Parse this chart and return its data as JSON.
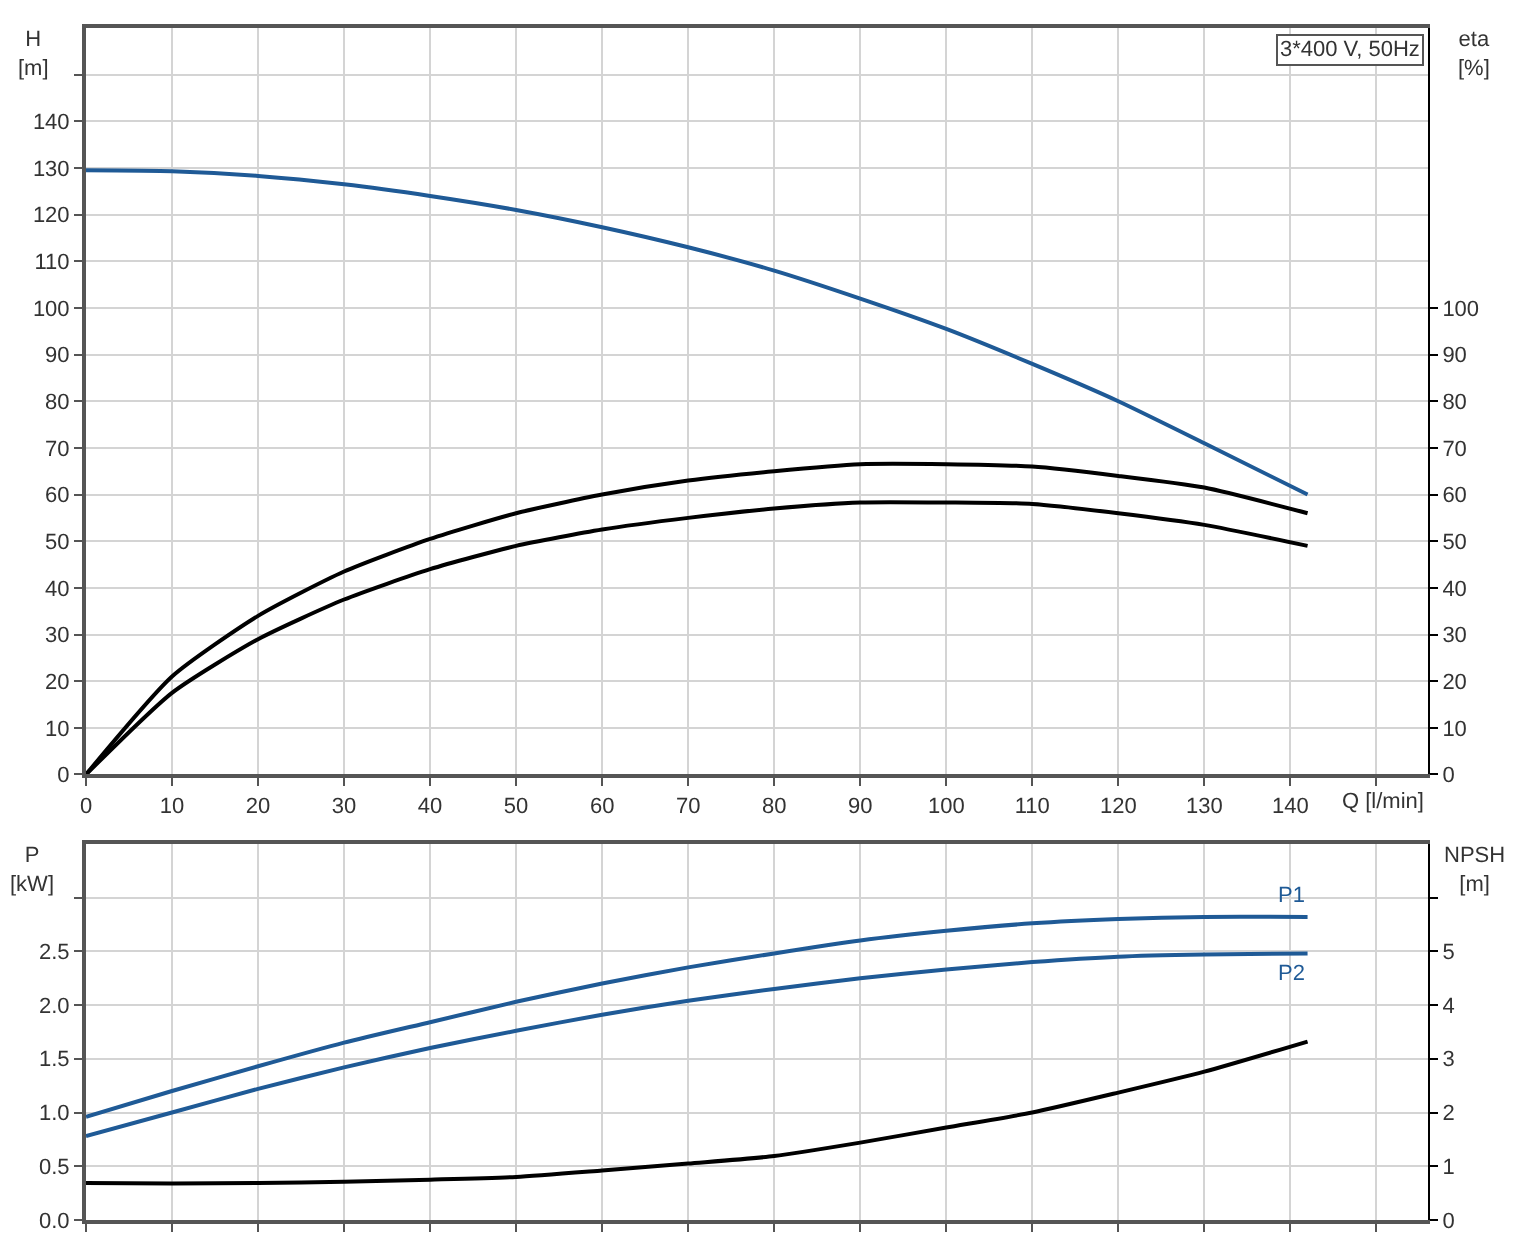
{
  "chart_data": [
    {
      "type": "line",
      "xlabel": "Q [l/min]",
      "ylabel": "H\n[m]",
      "y2label": "eta\n[%]",
      "annotations": [
        "3*400 V, 50Hz"
      ],
      "x": [
        0,
        10,
        20,
        30,
        40,
        50,
        60,
        70,
        80,
        90,
        100,
        110,
        120,
        130,
        142
      ],
      "series": [
        {
          "color": "#1f5a96",
          "values": [
            129.5,
            129.3,
            128.3,
            126.5,
            124,
            121,
            117.3,
            113,
            108,
            102,
            95.5,
            88,
            80,
            71,
            60
          ]
        },
        {
          "color": "#000000",
          "axis": "y2",
          "values": [
            0,
            21,
            34,
            43.5,
            50.5,
            56,
            60,
            63,
            65,
            66.5,
            66.5,
            66,
            64,
            61.5,
            56
          ]
        },
        {
          "color": "#000000",
          "axis": "y2",
          "values": [
            0,
            17.5,
            29,
            37.5,
            44,
            49,
            52.5,
            55,
            57,
            58.3,
            58.3,
            58,
            56,
            53.5,
            49
          ]
        }
      ],
      "xlim": [
        0,
        156
      ],
      "xticks": [
        0,
        10,
        20,
        30,
        40,
        50,
        60,
        70,
        80,
        90,
        100,
        110,
        120,
        130,
        140,
        {
          "value": 150,
          "label": null
        }
      ],
      "ylim": [
        0,
        160
      ],
      "yticks": [
        0,
        10,
        20,
        30,
        40,
        50,
        60,
        70,
        80,
        90,
        100,
        110,
        120,
        130,
        140,
        {
          "value": 150,
          "label": null
        }
      ],
      "y2lim": [
        0,
        160
      ],
      "y2ticks": [
        0,
        10,
        20,
        30,
        40,
        50,
        60,
        70,
        80,
        90,
        100
      ],
      "grid": true,
      "legend": false,
      "marker": "none",
      "line_style": "solid"
    },
    {
      "type": "line",
      "ylabel": "P\n[kW]",
      "y2label": "NPSH\n[m]",
      "x": [
        0,
        10,
        20,
        30,
        40,
        50,
        60,
        70,
        80,
        90,
        100,
        110,
        120,
        130,
        142
      ],
      "series": [
        {
          "name": "P1",
          "color": "#1f5a96",
          "values": [
            0.96,
            1.2,
            1.43,
            1.65,
            1.84,
            2.03,
            2.2,
            2.35,
            2.48,
            2.6,
            2.69,
            2.76,
            2.8,
            2.82,
            2.82
          ]
        },
        {
          "name": "P2",
          "color": "#1f5a96",
          "values": [
            0.78,
            1.0,
            1.22,
            1.42,
            1.6,
            1.76,
            1.91,
            2.04,
            2.15,
            2.25,
            2.33,
            2.4,
            2.45,
            2.47,
            2.48
          ]
        },
        {
          "color": "#000000",
          "axis": "y2",
          "values": [
            0.69,
            0.68,
            0.69,
            0.71,
            0.75,
            0.8,
            0.92,
            1.05,
            1.19,
            1.44,
            1.72,
            2.0,
            2.37,
            2.76,
            3.32
          ]
        }
      ],
      "xlim": [
        0,
        156
      ],
      "xticks": [
        0,
        10,
        20,
        30,
        40,
        50,
        60,
        70,
        80,
        90,
        100,
        110,
        120,
        130,
        140,
        150
      ],
      "ylim": [
        0,
        3.5
      ],
      "yticks": [
        {
          "value": 0,
          "label": "0.0"
        },
        0.5,
        {
          "value": 1,
          "label": "1.0"
        },
        1.5,
        {
          "value": 2,
          "label": "2.0"
        },
        2.5,
        {
          "value": 3,
          "label": null
        }
      ],
      "y2lim": [
        0,
        7
      ],
      "y2ticks": [
        0,
        1,
        2,
        3,
        4,
        5,
        {
          "value": 6,
          "label": null
        }
      ],
      "tick_labels": "y",
      "grid": true,
      "legend": false,
      "marker": "none",
      "line_style": "solid"
    }
  ]
}
